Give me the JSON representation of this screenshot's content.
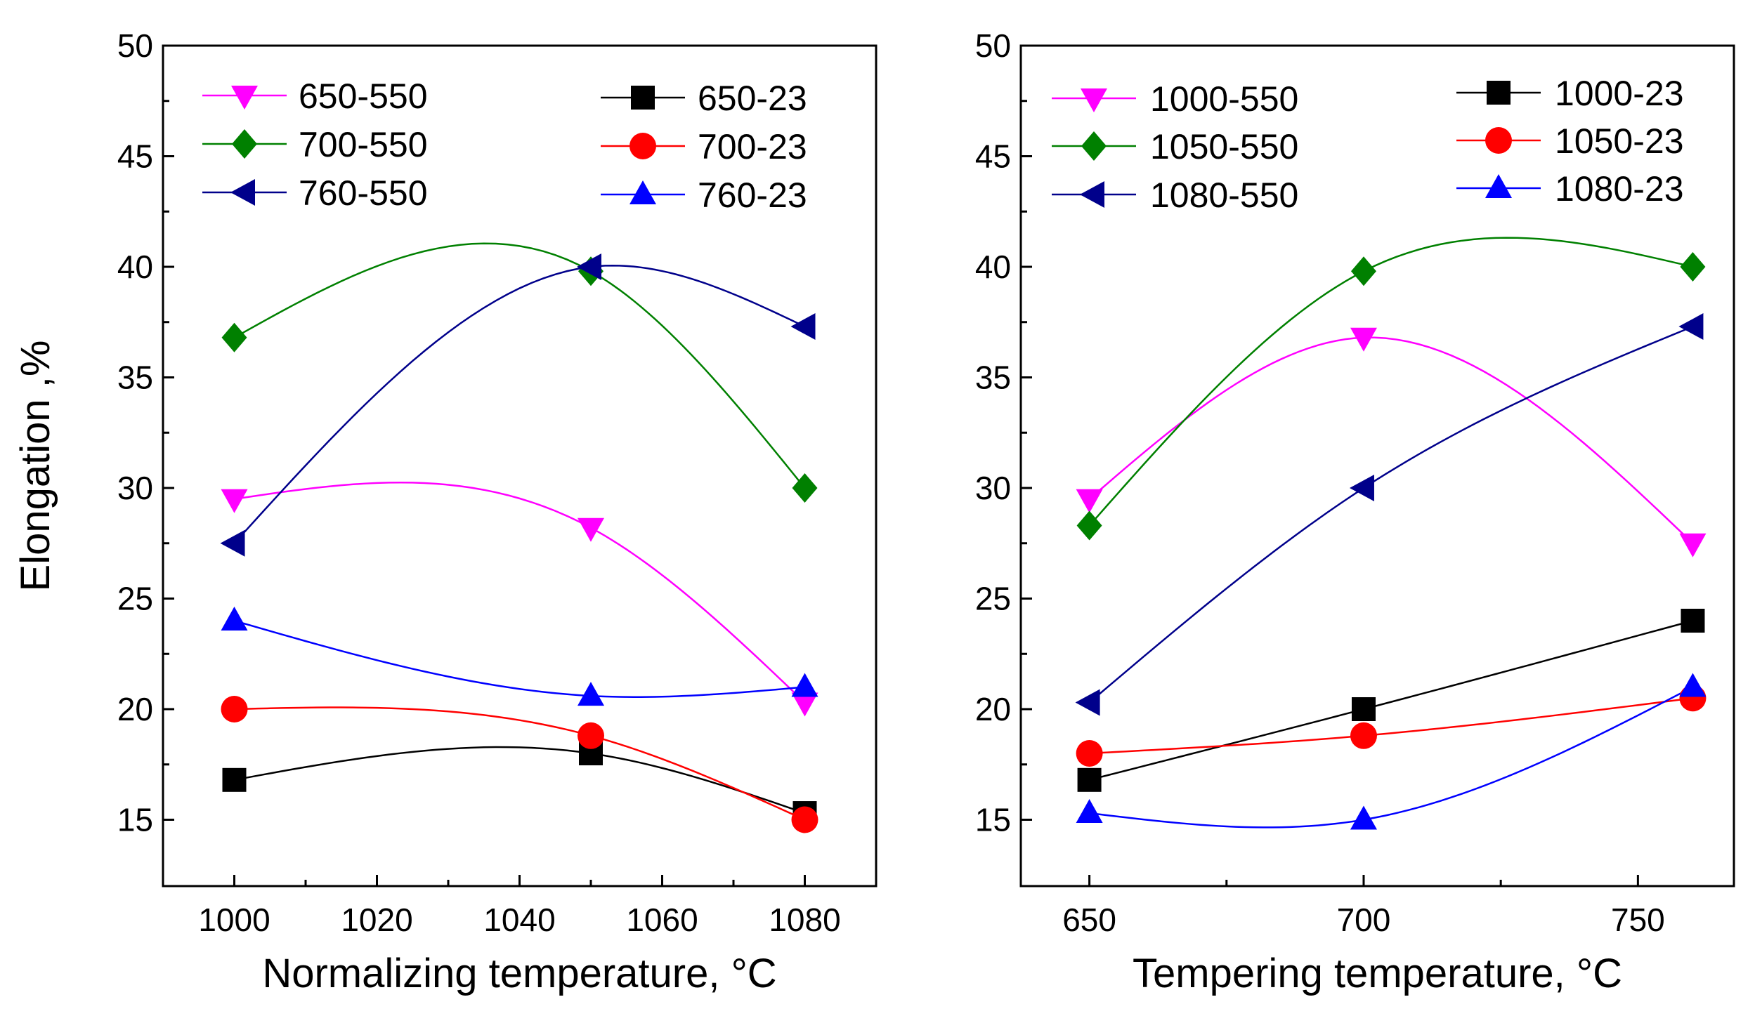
{
  "chart_data": [
    {
      "type": "line",
      "xlabel": "Normalizing temperature, °C",
      "ylabel": "Elongation ,%",
      "xlim": [
        990,
        1090
      ],
      "ylim": [
        12,
        50
      ],
      "xticks": [
        1000,
        1020,
        1040,
        1060,
        1080
      ],
      "xtick_labels": [
        "1000",
        "1020",
        "1040",
        "1060",
        "1080"
      ],
      "yticks": [
        15,
        20,
        25,
        30,
        35,
        40,
        45,
        50
      ],
      "ytick_labels": [
        "15",
        "20",
        "25",
        "30",
        "35",
        "40",
        "45",
        "50"
      ],
      "grid": false,
      "legend_position": "top",
      "series": [
        {
          "name": "650-550",
          "color": "#ff00ff",
          "marker": "triangle-down",
          "x": [
            1000,
            1050,
            1080
          ],
          "y": [
            29.5,
            28.2,
            20.3
          ]
        },
        {
          "name": "700-550",
          "color": "#008000",
          "marker": "diamond",
          "x": [
            1000,
            1050,
            1080
          ],
          "y": [
            36.8,
            39.8,
            30.0
          ]
        },
        {
          "name": "760-550",
          "color": "#00008b",
          "marker": "triangle-left",
          "x": [
            1000,
            1050,
            1080
          ],
          "y": [
            27.5,
            40.0,
            37.3
          ]
        },
        {
          "name": "650-23",
          "color": "#000000",
          "marker": "square",
          "x": [
            1000,
            1050,
            1080
          ],
          "y": [
            16.8,
            18.0,
            15.3
          ]
        },
        {
          "name": "700-23",
          "color": "#ff0000",
          "marker": "circle",
          "x": [
            1000,
            1050,
            1080
          ],
          "y": [
            20.0,
            18.8,
            15.0
          ]
        },
        {
          "name": "760-23",
          "color": "#0000ff",
          "marker": "triangle-up",
          "x": [
            1000,
            1050,
            1080
          ],
          "y": [
            24.0,
            20.6,
            21.0
          ]
        }
      ]
    },
    {
      "type": "line",
      "xlabel": "Tempering temperature, °C",
      "ylabel": "",
      "xlim": [
        637.5,
        767.5
      ],
      "ylim": [
        12,
        50
      ],
      "xticks": [
        650,
        700,
        750
      ],
      "xtick_labels": [
        "650",
        "700",
        "750"
      ],
      "yticks": [
        15,
        20,
        25,
        30,
        35,
        40,
        45,
        50
      ],
      "ytick_labels": [
        "15",
        "20",
        "25",
        "30",
        "35",
        "40",
        "45",
        "50"
      ],
      "grid": false,
      "legend_position": "top",
      "series": [
        {
          "name": "1000-550",
          "color": "#ff00ff",
          "marker": "triangle-down",
          "x": [
            650,
            700,
            760
          ],
          "y": [
            29.5,
            36.8,
            27.5
          ]
        },
        {
          "name": "1050-550",
          "color": "#008000",
          "marker": "diamond",
          "x": [
            650,
            700,
            760
          ],
          "y": [
            28.3,
            39.8,
            40.0
          ]
        },
        {
          "name": "1080-550",
          "color": "#00008b",
          "marker": "triangle-left",
          "x": [
            650,
            700,
            760
          ],
          "y": [
            20.3,
            30.0,
            37.3
          ]
        },
        {
          "name": "1000-23",
          "color": "#000000",
          "marker": "square",
          "x": [
            650,
            700,
            760
          ],
          "y": [
            16.8,
            20.0,
            24.0
          ]
        },
        {
          "name": "1050-23",
          "color": "#ff0000",
          "marker": "circle",
          "x": [
            650,
            700,
            760
          ],
          "y": [
            18.0,
            18.8,
            20.5
          ]
        },
        {
          "name": "1080-23",
          "color": "#0000ff",
          "marker": "triangle-up",
          "x": [
            650,
            700,
            760
          ],
          "y": [
            15.3,
            15.0,
            21.0
          ]
        }
      ]
    }
  ]
}
